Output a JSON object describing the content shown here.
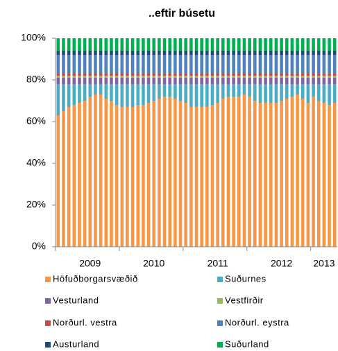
{
  "chart_data": {
    "type": "stacked_bar",
    "title": "..eftir búsetu",
    "categories": [
      null,
      null,
      null,
      null,
      null,
      null,
      "2009",
      null,
      null,
      null,
      null,
      null,
      null,
      null,
      null,
      null,
      null,
      null,
      "2010",
      null,
      null,
      null,
      null,
      null,
      null,
      null,
      null,
      null,
      null,
      null,
      "2011",
      null,
      null,
      null,
      null,
      null,
      null,
      null,
      null,
      null,
      null,
      null,
      "2012",
      null,
      null,
      null,
      null,
      null,
      null,
      null,
      "2013",
      null,
      null
    ],
    "series": [
      {
        "name": "Höfuðborgarsvæðið",
        "color": "#f79646",
        "values": [
          63,
          65,
          67,
          68,
          69,
          70,
          72,
          73,
          73,
          71,
          70,
          68,
          67,
          67,
          67,
          68,
          68,
          69,
          70,
          71,
          72,
          72,
          71,
          70,
          69,
          67,
          67,
          67,
          67,
          68,
          69,
          71,
          72,
          72,
          72,
          73,
          72,
          70,
          69,
          69,
          69,
          69,
          70,
          71,
          72,
          73,
          71,
          69,
          72,
          70,
          69,
          68,
          69
        ]
      },
      {
        "name": "Suðurnes",
        "color": "#4bacc6",
        "values": [
          15,
          13,
          11,
          10,
          9,
          8,
          6,
          5,
          5,
          7,
          8,
          10,
          11,
          11,
          11,
          10,
          10,
          9,
          8,
          7,
          6,
          6,
          7,
          8,
          9,
          11,
          11,
          11,
          11,
          10,
          9,
          7,
          6,
          6,
          6,
          5,
          6,
          8,
          9,
          9,
          9,
          9,
          8,
          7,
          6,
          5,
          7,
          9,
          6,
          8,
          9,
          10,
          9
        ]
      },
      {
        "name": "Vesturland",
        "color": "#8064a2",
        "values": [
          3,
          3,
          3,
          3,
          3,
          3,
          3,
          3,
          3,
          3,
          3,
          3,
          3,
          3,
          3,
          3,
          3,
          3,
          3,
          3,
          3,
          3,
          3,
          3,
          3,
          3,
          3,
          3,
          3,
          3,
          3,
          3,
          3,
          3,
          3,
          3,
          3,
          3,
          3,
          3,
          3,
          3,
          3,
          3,
          3,
          3,
          3,
          3,
          3,
          3,
          3,
          3,
          3
        ]
      },
      {
        "name": "Vestfirðir",
        "color": "#9bbb59",
        "values": [
          1,
          1,
          1,
          1,
          1,
          1,
          1,
          1,
          1,
          1,
          1,
          1,
          1,
          1,
          1,
          1,
          1,
          1,
          1,
          1,
          1,
          1,
          1,
          1,
          1,
          1,
          1,
          1,
          1,
          1,
          1,
          1,
          1,
          1,
          1,
          1,
          1,
          1,
          1,
          1,
          1,
          1,
          1,
          1,
          1,
          1,
          1,
          1,
          1,
          1,
          1,
          1,
          1
        ]
      },
      {
        "name": "Norðurl. vestra",
        "color": "#c0504d",
        "values": [
          1,
          1,
          1,
          1,
          1,
          1,
          1,
          1,
          1,
          1,
          1,
          1,
          1,
          1,
          1,
          1,
          1,
          1,
          1,
          1,
          1,
          1,
          1,
          1,
          1,
          1,
          1,
          1,
          1,
          1,
          1,
          1,
          1,
          1,
          1,
          1,
          1,
          1,
          1,
          1,
          1,
          1,
          1,
          1,
          1,
          1,
          1,
          1,
          1,
          1,
          1,
          1,
          1
        ]
      },
      {
        "name": "Norðurl. eystra",
        "color": "#4f81bd",
        "values": [
          9,
          9,
          9,
          9,
          9,
          9,
          9,
          9,
          9,
          9,
          9,
          9,
          9,
          9,
          9,
          9,
          9,
          9,
          9,
          9,
          9,
          9,
          9,
          9,
          9,
          9,
          9,
          9,
          9,
          9,
          9,
          9,
          9,
          9,
          9,
          9,
          9,
          9,
          9,
          9,
          9,
          9,
          9,
          9,
          9,
          9,
          9,
          9,
          9,
          9,
          9,
          9,
          9
        ]
      },
      {
        "name": "Austurland",
        "color": "#1f497d",
        "values": [
          2,
          2,
          2,
          2,
          2,
          2,
          2,
          2,
          2,
          2,
          2,
          2,
          2,
          2,
          2,
          2,
          2,
          2,
          2,
          2,
          2,
          2,
          2,
          2,
          2,
          2,
          2,
          2,
          2,
          2,
          2,
          2,
          2,
          2,
          2,
          2,
          2,
          2,
          2,
          2,
          2,
          2,
          2,
          2,
          2,
          2,
          2,
          2,
          2,
          2,
          2,
          2,
          2
        ]
      },
      {
        "name": "Suðurland",
        "color": "#00b050",
        "values": [
          6,
          6,
          6,
          6,
          6,
          6,
          6,
          6,
          6,
          6,
          6,
          6,
          6,
          6,
          6,
          6,
          6,
          6,
          6,
          6,
          6,
          6,
          6,
          6,
          6,
          6,
          6,
          6,
          6,
          6,
          6,
          6,
          6,
          6,
          6,
          6,
          6,
          6,
          6,
          6,
          6,
          6,
          6,
          6,
          6,
          6,
          6,
          6,
          6,
          6,
          6,
          6,
          6
        ]
      }
    ],
    "ylim": [
      0,
      100
    ],
    "yticks": [
      {
        "value": 0,
        "label": "0%"
      },
      {
        "value": 20,
        "label": "20%"
      },
      {
        "value": 40,
        "label": "40%"
      },
      {
        "value": 60,
        "label": "60%"
      },
      {
        "value": 80,
        "label": "80%"
      },
      {
        "value": 100,
        "label": "100%"
      }
    ]
  }
}
